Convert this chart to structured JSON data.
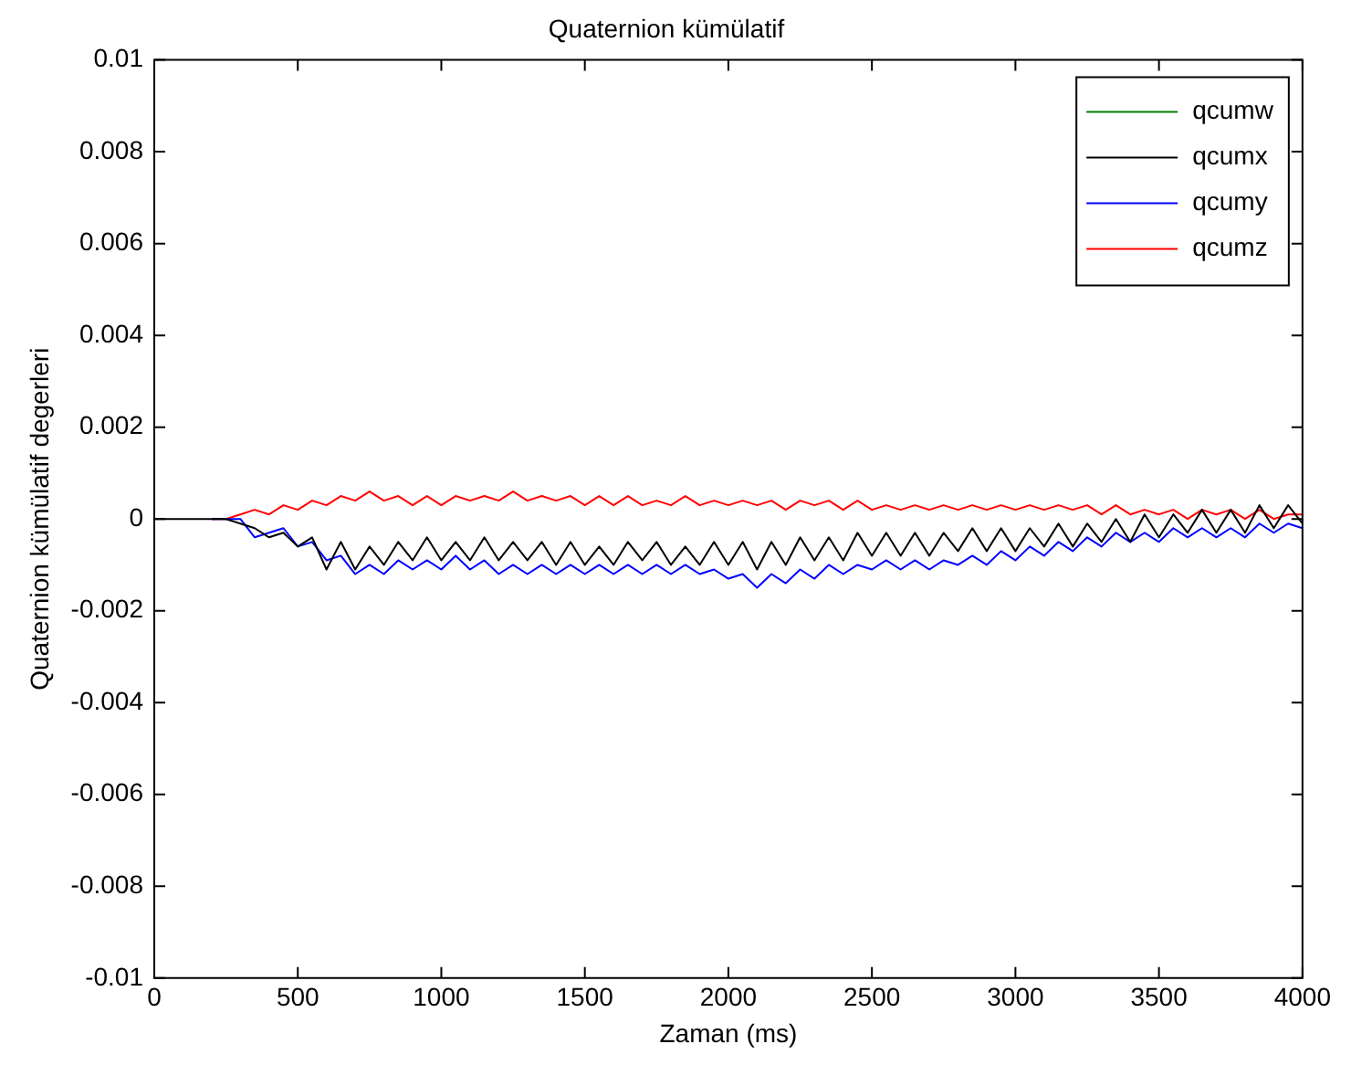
{
  "chart_data": {
    "type": "line",
    "title": "Quaternion kümülatif",
    "xlabel": "Zaman (ms)",
    "ylabel": "Quaternion kümülatif degerleri",
    "x": [
      0,
      50,
      100,
      150,
      200,
      250,
      300,
      350,
      400,
      450,
      500,
      550,
      600,
      650,
      700,
      750,
      800,
      850,
      900,
      950,
      1000,
      1050,
      1100,
      1150,
      1200,
      1250,
      1300,
      1350,
      1400,
      1450,
      1500,
      1550,
      1600,
      1650,
      1700,
      1750,
      1800,
      1850,
      1900,
      1950,
      2000,
      2050,
      2100,
      2150,
      2200,
      2250,
      2300,
      2350,
      2400,
      2450,
      2500,
      2550,
      2600,
      2650,
      2700,
      2750,
      2800,
      2850,
      2900,
      2950,
      3000,
      3050,
      3100,
      3150,
      3200,
      3250,
      3300,
      3350,
      3400,
      3450,
      3500,
      3550,
      3600,
      3650,
      3700,
      3750,
      3800,
      3850,
      3900,
      3950,
      4000
    ],
    "series": [
      {
        "name": "qcumw",
        "color": "#008000",
        "values": [
          null,
          null,
          null,
          null,
          null,
          null,
          null,
          null,
          null,
          null,
          null,
          null,
          null,
          null,
          null,
          null,
          null,
          null,
          null,
          null,
          null,
          null,
          null,
          null,
          null,
          null,
          null,
          null,
          null,
          null,
          null,
          null,
          null,
          null,
          null,
          null,
          null,
          null,
          null,
          null,
          null,
          null,
          null,
          null,
          null,
          null,
          null,
          null,
          null,
          null,
          null,
          null,
          null,
          null,
          null,
          null,
          null,
          null,
          null,
          null,
          null,
          null,
          null,
          null,
          null,
          null,
          null,
          null,
          null,
          null,
          null,
          null,
          null,
          null,
          null,
          null,
          null,
          null,
          null,
          null,
          null
        ]
      },
      {
        "name": "qcumx",
        "color": "#000000",
        "values": [
          0,
          0,
          0,
          0,
          0,
          0,
          -0.0001,
          -0.0002,
          -0.0004,
          -0.0003,
          -0.0006,
          -0.0004,
          -0.0011,
          -0.0005,
          -0.0011,
          -0.0006,
          -0.001,
          -0.0005,
          -0.0009,
          -0.0004,
          -0.0009,
          -0.0005,
          -0.0009,
          -0.0004,
          -0.0009,
          -0.0005,
          -0.0009,
          -0.0005,
          -0.001,
          -0.0005,
          -0.001,
          -0.0006,
          -0.001,
          -0.0005,
          -0.0009,
          -0.0005,
          -0.001,
          -0.0006,
          -0.001,
          -0.0005,
          -0.001,
          -0.0005,
          -0.0011,
          -0.0005,
          -0.001,
          -0.0004,
          -0.0009,
          -0.0004,
          -0.0009,
          -0.0003,
          -0.0008,
          -0.0003,
          -0.0008,
          -0.0003,
          -0.0008,
          -0.0003,
          -0.0007,
          -0.0002,
          -0.0007,
          -0.0002,
          -0.0007,
          -0.0002,
          -0.0006,
          -0.0001,
          -0.0006,
          -0.0001,
          -0.0005,
          0,
          -0.0005,
          0.0001,
          -0.0004,
          0.0001,
          -0.0003,
          0.0002,
          -0.0003,
          0.0002,
          -0.0003,
          0.0003,
          -0.0002,
          0.0003,
          -0.0001
        ]
      },
      {
        "name": "qcumy",
        "color": "#0000ff",
        "values": [
          null,
          null,
          null,
          null,
          0,
          0,
          0,
          -0.0004,
          -0.0003,
          -0.0002,
          -0.0006,
          -0.0005,
          -0.0009,
          -0.0008,
          -0.0012,
          -0.001,
          -0.0012,
          -0.0009,
          -0.0011,
          -0.0009,
          -0.0011,
          -0.0008,
          -0.0011,
          -0.0009,
          -0.0012,
          -0.001,
          -0.0012,
          -0.001,
          -0.0012,
          -0.001,
          -0.0012,
          -0.001,
          -0.0012,
          -0.001,
          -0.0012,
          -0.001,
          -0.0012,
          -0.001,
          -0.0012,
          -0.0011,
          -0.0013,
          -0.0012,
          -0.0015,
          -0.0012,
          -0.0014,
          -0.0011,
          -0.0013,
          -0.001,
          -0.0012,
          -0.001,
          -0.0011,
          -0.0009,
          -0.0011,
          -0.0009,
          -0.0011,
          -0.0009,
          -0.001,
          -0.0008,
          -0.001,
          -0.0007,
          -0.0009,
          -0.0006,
          -0.0008,
          -0.0005,
          -0.0007,
          -0.0004,
          -0.0006,
          -0.0003,
          -0.0005,
          -0.0003,
          -0.0005,
          -0.0002,
          -0.0004,
          -0.0002,
          -0.0004,
          -0.0002,
          -0.0004,
          -0.0001,
          -0.0003,
          -0.0001,
          -0.0002
        ]
      },
      {
        "name": "qcumz",
        "color": "#ff0000",
        "values": [
          null,
          null,
          null,
          null,
          0,
          0,
          0.0001,
          0.0002,
          0.0001,
          0.0003,
          0.0002,
          0.0004,
          0.0003,
          0.0005,
          0.0004,
          0.0006,
          0.0004,
          0.0005,
          0.0003,
          0.0005,
          0.0003,
          0.0005,
          0.0004,
          0.0005,
          0.0004,
          0.0006,
          0.0004,
          0.0005,
          0.0004,
          0.0005,
          0.0003,
          0.0005,
          0.0003,
          0.0005,
          0.0003,
          0.0004,
          0.0003,
          0.0005,
          0.0003,
          0.0004,
          0.0003,
          0.0004,
          0.0003,
          0.0004,
          0.0002,
          0.0004,
          0.0003,
          0.0004,
          0.0002,
          0.0004,
          0.0002,
          0.0003,
          0.0002,
          0.0003,
          0.0002,
          0.0003,
          0.0002,
          0.0003,
          0.0002,
          0.0003,
          0.0002,
          0.0003,
          0.0002,
          0.0003,
          0.0002,
          0.0003,
          0.0001,
          0.0003,
          0.0001,
          0.0002,
          0.0001,
          0.0002,
          0,
          0.0002,
          0.0001,
          0.0002,
          0,
          0.0002,
          0,
          0.0001,
          0.0001
        ]
      }
    ],
    "xlim": [
      0,
      4000
    ],
    "xticks": [
      0,
      500,
      1000,
      1500,
      2000,
      2500,
      3000,
      3500,
      4000
    ],
    "ylim": [
      -0.01,
      0.01
    ],
    "yticks": [
      -0.01,
      -0.008,
      -0.006,
      -0.004,
      -0.002,
      0,
      0.002,
      0.004,
      0.006,
      0.008,
      0.01
    ],
    "grid": false,
    "legend": "top right",
    "marker": "none",
    "line_style": "solid"
  }
}
